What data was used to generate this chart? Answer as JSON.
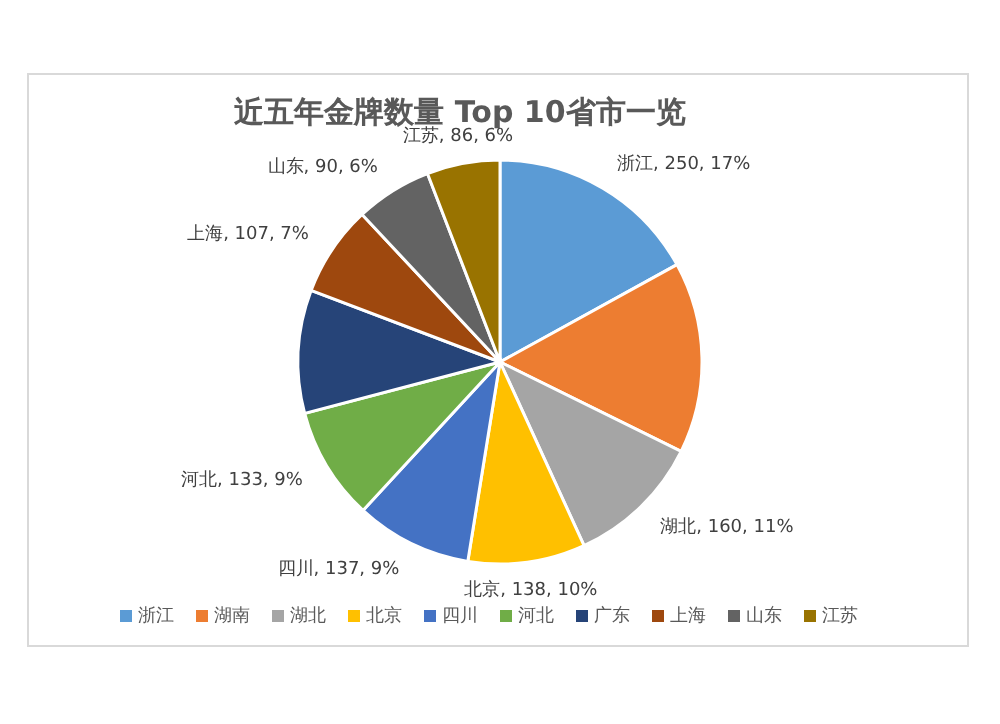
{
  "chart_data": {
    "type": "pie",
    "title": "近五年金牌数量 Top 10省市一览",
    "categories": [
      "浙江",
      "湖南",
      "湖北",
      "北京",
      "四川",
      "河北",
      "广东",
      "上海",
      "山东",
      "江苏"
    ],
    "values": [
      250,
      225,
      160,
      138,
      137,
      133,
      145,
      107,
      90,
      86
    ],
    "colors": [
      "#5b9bd5",
      "#ed7d31",
      "#a5a5a5",
      "#ffc000",
      "#4472c4",
      "#70ad47",
      "#264478",
      "#9e480e",
      "#636363",
      "#997300"
    ],
    "value_labels": [
      "浙江, 250, 17%",
      null,
      "湖北, 160, 11%",
      "北京, 138, 10%",
      "四川, 137, 9%",
      "河北, 133, 9%",
      null,
      "上海, 107, 7%",
      "山东, 90, 6%",
      "江苏, 86, 6%"
    ],
    "legend": "bottom"
  }
}
